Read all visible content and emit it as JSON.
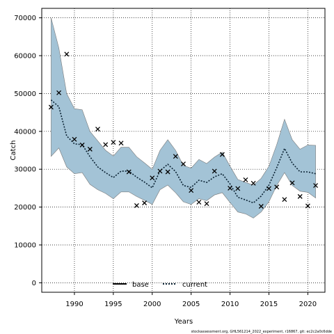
{
  "chart_data": {
    "type": "line",
    "xlabel": "Years",
    "ylabel": "Catch",
    "xlim": [
      1985.8,
      2022.2
    ],
    "ylim": [
      -2500,
      72500
    ],
    "xticks": [
      1990,
      1995,
      2000,
      2005,
      2010,
      2015,
      2020
    ],
    "yticks": [
      0,
      10000,
      20000,
      30000,
      40000,
      50000,
      60000,
      70000
    ],
    "grid": true,
    "legend_position": "bottom-center",
    "band_color": "#a3c3d6",
    "band_edge_color": "#7a7a7a",
    "current_line_color": "#0a2233",
    "base_line_color": "#000000",
    "legend": [
      {
        "name": "base",
        "style": "solid"
      },
      {
        "name": "current",
        "style": "dotted"
      }
    ],
    "years": [
      1987,
      1988,
      1989,
      1990,
      1991,
      1992,
      1993,
      1994,
      1995,
      1996,
      1997,
      1998,
      1999,
      2000,
      2001,
      2002,
      2003,
      2004,
      2005,
      2006,
      2007,
      2008,
      2009,
      2010,
      2011,
      2012,
      2013,
      2014,
      2015,
      2016,
      2017,
      2018,
      2019,
      2020,
      2021
    ],
    "band_upper": [
      70000,
      62000,
      50000,
      46000,
      45700,
      40000,
      37500,
      35000,
      33500,
      35800,
      35800,
      33300,
      31700,
      30000,
      35000,
      37800,
      35000,
      31000,
      30300,
      32600,
      31500,
      33200,
      34500,
      30800,
      27300,
      26500,
      25800,
      27600,
      30800,
      36500,
      43200,
      37800,
      35300,
      36400,
      36300
    ],
    "band_lower": [
      33400,
      35600,
      30600,
      28800,
      29100,
      26000,
      24600,
      23600,
      22200,
      24000,
      24000,
      22800,
      21800,
      20700,
      24600,
      25800,
      23800,
      21400,
      20700,
      22200,
      21700,
      23200,
      23800,
      21200,
      18700,
      18200,
      17100,
      18700,
      21400,
      25700,
      29100,
      25700,
      24200,
      23900,
      22400
    ],
    "current": [
      48300,
      46500,
      38800,
      36700,
      36500,
      33300,
      30600,
      29100,
      27800,
      29500,
      29500,
      27900,
      26600,
      25100,
      29600,
      31300,
      29400,
      25700,
      25200,
      27100,
      26500,
      28000,
      28800,
      26100,
      22600,
      21900,
      21100,
      22900,
      25800,
      30400,
      35500,
      31600,
      29300,
      29300,
      28800
    ],
    "observed": [
      [
        1987,
        46400
      ],
      [
        1988,
        50200
      ],
      [
        1989,
        60400
      ],
      [
        1990,
        37900
      ],
      [
        1991,
        36400
      ],
      [
        1992,
        35300
      ],
      [
        1993,
        40600
      ],
      [
        1994,
        36500
      ],
      [
        1995,
        37100
      ],
      [
        1996,
        36900
      ],
      [
        1997,
        29300
      ],
      [
        1998,
        20400
      ],
      [
        1999,
        21100
      ],
      [
        2000,
        27700
      ],
      [
        2001,
        29500
      ],
      [
        2002,
        29300
      ],
      [
        2003,
        33400
      ],
      [
        2004,
        31400
      ],
      [
        2005,
        24400
      ],
      [
        2006,
        21300
      ],
      [
        2007,
        20900
      ],
      [
        2008,
        29500
      ],
      [
        2009,
        33900
      ],
      [
        2010,
        25000
      ],
      [
        2011,
        24900
      ],
      [
        2012,
        27200
      ],
      [
        2013,
        26300
      ],
      [
        2014,
        20200
      ],
      [
        2015,
        24900
      ],
      [
        2016,
        25300
      ],
      [
        2017,
        22000
      ],
      [
        2018,
        26400
      ],
      [
        2019,
        22800
      ],
      [
        2020,
        20300
      ],
      [
        2021,
        25700
      ]
    ],
    "footnote": "stockassessment.org, GHL561214_2022_experiment, r16867, git: ec2c2a0c6dde"
  }
}
